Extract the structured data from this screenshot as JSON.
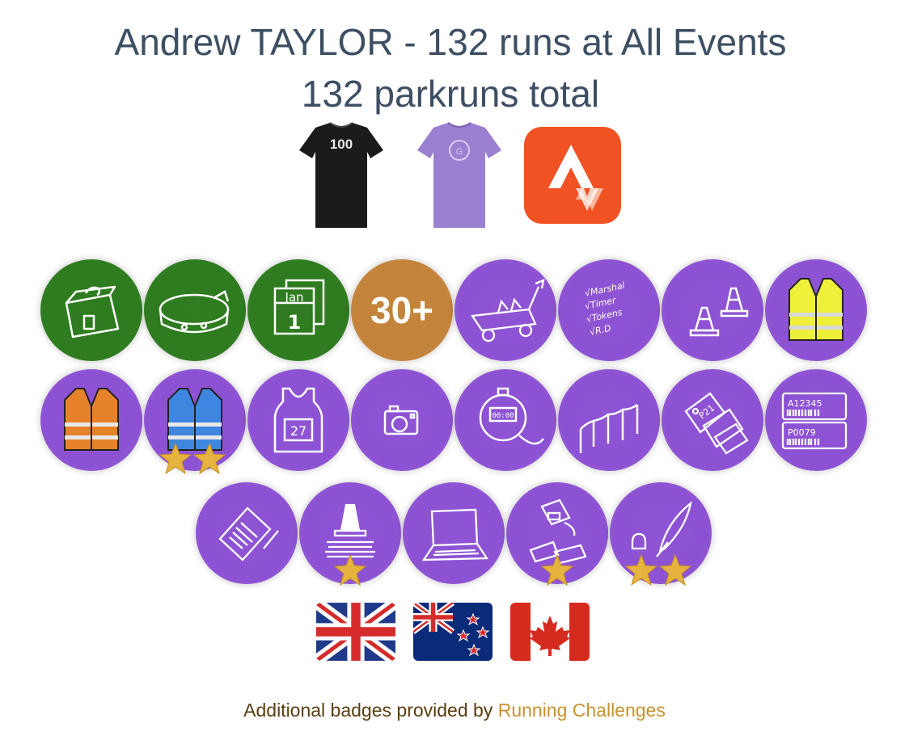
{
  "header": {
    "title": "Andrew TAYLOR - 132 runs at All Events",
    "subtitle": "132 parkruns total"
  },
  "milestones": {
    "shirts": [
      {
        "name": "black-100-shirt-icon",
        "text": "100",
        "color": "#1a1a1a"
      },
      {
        "name": "purple-volunteer-shirt-icon",
        "color": "#9b7fd1"
      }
    ],
    "strava": {
      "name": "strava-icon",
      "color": "#f05223"
    }
  },
  "badges": {
    "row1": [
      {
        "name": "bag-tag-badge-icon",
        "color": "green"
      },
      {
        "name": "wristband-badge-icon",
        "color": "green"
      },
      {
        "name": "calendar-jan-1-badge-icon",
        "color": "green",
        "text": "Jan 1"
      },
      {
        "name": "30-plus-badge-icon",
        "color": "orange",
        "text": "30+"
      },
      {
        "name": "trolley-badge-icon",
        "color": "purple"
      },
      {
        "name": "checklist-badge-icon",
        "color": "purple",
        "text": "Marshal Timer Tokens R.D"
      },
      {
        "name": "cones-badge-icon",
        "color": "purple"
      },
      {
        "name": "yellow-vest-badge-icon",
        "color": "purple"
      }
    ],
    "row2": [
      {
        "name": "orange-vest-badge-icon",
        "color": "purple"
      },
      {
        "name": "blue-vest-badge-icon",
        "color": "purple",
        "stars": 2
      },
      {
        "name": "race-bib-badge-icon",
        "color": "purple",
        "text": "27"
      },
      {
        "name": "camera-badge-icon",
        "color": "purple"
      },
      {
        "name": "stopwatch-badge-icon",
        "color": "purple",
        "text": "00:00"
      },
      {
        "name": "finish-funnel-badge-icon",
        "color": "purple"
      },
      {
        "name": "finish-tokens-badge-icon",
        "color": "purple",
        "text": "P21"
      },
      {
        "name": "barcode-badge-icon",
        "color": "purple",
        "text": "A12345",
        "text2": "P0079"
      }
    ],
    "row3": [
      {
        "name": "clipboard-badge-icon",
        "color": "purple"
      },
      {
        "name": "cone-stack-badge-icon",
        "color": "purple",
        "stars": 1
      },
      {
        "name": "laptop-badge-icon",
        "color": "purple"
      },
      {
        "name": "scanner-badge-icon",
        "color": "purple",
        "stars": 1
      },
      {
        "name": "quill-pen-badge-icon",
        "color": "purple",
        "stars": 2
      }
    ]
  },
  "flags": [
    {
      "name": "uk-flag-icon",
      "country": "United Kingdom"
    },
    {
      "name": "nz-flag-icon",
      "country": "New Zealand"
    },
    {
      "name": "canada-flag-icon",
      "country": "Canada"
    }
  ],
  "footer": {
    "prefix": "Additional badges provided by ",
    "link": "Running Challenges"
  },
  "colors": {
    "title": "#3d4f63",
    "purple": "#8d52d3",
    "green": "#2f7b20",
    "orange": "#c3833b",
    "star": "#e6b33e",
    "link": "#c9922f"
  }
}
